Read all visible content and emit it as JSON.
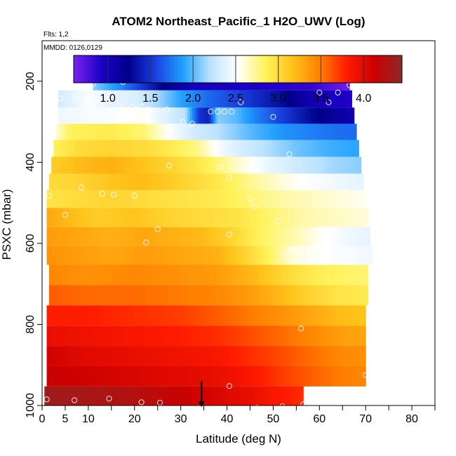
{
  "title": "ATOM2 Northeast_Pacific_1 H2O_UWV (Log)",
  "flts": "Flts: 1,2",
  "mmdd": "MMDD: 0126,0129",
  "chart_data": {
    "type": "heatmap",
    "title": "ATOM2 Northeast_Pacific_1 H2O_UWV (Log)",
    "xlabel": "Latitude (deg N)",
    "ylabel": "PSXC (mbar)",
    "xlim": [
      0,
      85
    ],
    "ylim": [
      1000,
      100
    ],
    "x_ticks": [
      0,
      5,
      10,
      20,
      30,
      40,
      50,
      60,
      70,
      80
    ],
    "x_minor_ticks": [
      15,
      25,
      35,
      45,
      55,
      65,
      75,
      85
    ],
    "y_ticks": [
      200,
      400,
      600,
      800,
      1000
    ],
    "grid": false,
    "legend": "colorbar top",
    "colorbar": {
      "min": 0.6,
      "max": 4.45,
      "ticks": [
        1.0,
        1.5,
        2.0,
        2.5,
        3.0,
        3.5,
        4.0
      ],
      "colors": [
        "#7b22ee",
        "#1c00c8",
        "#00008a",
        "#1a40e0",
        "#20a0ff",
        "#bde3ff",
        "#ffffff",
        "#fff35c",
        "#ffc21a",
        "#ff7f00",
        "#ff1a00",
        "#cc0000",
        "#8b2a2a"
      ]
    },
    "layers": [
      {
        "p": 200,
        "lat_min": 11,
        "lat_max": 66.5,
        "nodes": [
          [
            11,
            2.1
          ],
          [
            17,
            1.8
          ],
          [
            22,
            1.5
          ],
          [
            26,
            1.25
          ],
          [
            32,
            1.0
          ],
          [
            40,
            0.95
          ],
          [
            50,
            0.9
          ],
          [
            58,
            0.85
          ],
          [
            63,
            0.72
          ],
          [
            66,
            0.65
          ]
        ]
      },
      {
        "p": 245,
        "lat_min": 3.5,
        "lat_max": 67,
        "nodes": [
          [
            3.5,
            2.3
          ],
          [
            10,
            2.5
          ],
          [
            15,
            2.4
          ],
          [
            20,
            2.35
          ],
          [
            25,
            2.15
          ],
          [
            30,
            1.9
          ],
          [
            36,
            1.7
          ],
          [
            45,
            1.5
          ],
          [
            52,
            1.3
          ],
          [
            58,
            1.05
          ],
          [
            63,
            0.95
          ],
          [
            67,
            0.9
          ]
        ]
      },
      {
        "p": 285,
        "lat_min": 3.5,
        "lat_max": 67.5,
        "nodes": [
          [
            3.5,
            2.45
          ],
          [
            15,
            2.5
          ],
          [
            22,
            2.55
          ],
          [
            27,
            2.35
          ],
          [
            31,
            2.2
          ],
          [
            34,
            1.5
          ],
          [
            36,
            1.4
          ],
          [
            38,
            2.1
          ],
          [
            42,
            2.0
          ],
          [
            47,
            1.75
          ],
          [
            53,
            1.5
          ],
          [
            58,
            1.3
          ],
          [
            63,
            1.15
          ],
          [
            67,
            1.05
          ]
        ]
      },
      {
        "p": 325,
        "lat_min": 3,
        "lat_max": 68,
        "nodes": [
          [
            3,
            2.6
          ],
          [
            6,
            2.85
          ],
          [
            15,
            2.9
          ],
          [
            22,
            2.8
          ],
          [
            28,
            2.5
          ],
          [
            33,
            2.3
          ],
          [
            38,
            2.2
          ],
          [
            45,
            2.0
          ],
          [
            52,
            1.85
          ],
          [
            60,
            1.75
          ],
          [
            68,
            1.7
          ]
        ]
      },
      {
        "p": 365,
        "lat_min": 2.5,
        "lat_max": 68.5,
        "nodes": [
          [
            2.5,
            2.85
          ],
          [
            8,
            3.0
          ],
          [
            15,
            3.05
          ],
          [
            22,
            3.0
          ],
          [
            28,
            2.9
          ],
          [
            34,
            2.75
          ],
          [
            38,
            2.5
          ],
          [
            42,
            2.35
          ],
          [
            48,
            2.2
          ],
          [
            55,
            2.05
          ],
          [
            62,
            1.95
          ],
          [
            68.5,
            1.9
          ]
        ]
      },
      {
        "p": 408,
        "lat_min": 2,
        "lat_max": 69,
        "nodes": [
          [
            2,
            3.1
          ],
          [
            8,
            3.2
          ],
          [
            15,
            3.25
          ],
          [
            22,
            3.15
          ],
          [
            28,
            3.05
          ],
          [
            33,
            2.95
          ],
          [
            38,
            2.8
          ],
          [
            43,
            2.6
          ],
          [
            50,
            2.4
          ],
          [
            57,
            2.25
          ],
          [
            63,
            2.15
          ],
          [
            69,
            2.1
          ]
        ]
      },
      {
        "p": 448,
        "lat_min": 1.5,
        "lat_max": 69.5,
        "nodes": [
          [
            1.5,
            3.0
          ],
          [
            8,
            3.05
          ],
          [
            15,
            3.15
          ],
          [
            22,
            3.2
          ],
          [
            28,
            3.1
          ],
          [
            34,
            3.0
          ],
          [
            39,
            2.9
          ],
          [
            45,
            2.75
          ],
          [
            52,
            2.6
          ],
          [
            58,
            2.5
          ],
          [
            64,
            2.45
          ],
          [
            69.5,
            2.4
          ]
        ]
      },
      {
        "p": 490,
        "lat_min": 1,
        "lat_max": 70,
        "nodes": [
          [
            1,
            2.95
          ],
          [
            8,
            3.0
          ],
          [
            15,
            3.05
          ],
          [
            22,
            3.0
          ],
          [
            30,
            2.95
          ],
          [
            38,
            2.9
          ],
          [
            45,
            2.8
          ],
          [
            52,
            2.7
          ],
          [
            58,
            2.65
          ],
          [
            64,
            2.6
          ],
          [
            70,
            2.55
          ]
        ]
      },
      {
        "p": 535,
        "lat_min": 1,
        "lat_max": 70.5,
        "nodes": [
          [
            1,
            3.3
          ],
          [
            6,
            3.2
          ],
          [
            12,
            3.1
          ],
          [
            20,
            3.15
          ],
          [
            28,
            3.05
          ],
          [
            35,
            3.0
          ],
          [
            42,
            2.95
          ],
          [
            50,
            2.8
          ],
          [
            56,
            2.7
          ],
          [
            62,
            2.65
          ],
          [
            70.5,
            2.6
          ]
        ]
      },
      {
        "p": 585,
        "lat_min": 1,
        "lat_max": 71,
        "nodes": [
          [
            1,
            3.35
          ],
          [
            8,
            3.3
          ],
          [
            15,
            3.25
          ],
          [
            22,
            3.3
          ],
          [
            28,
            3.25
          ],
          [
            35,
            3.2
          ],
          [
            41,
            3.05
          ],
          [
            47,
            2.85
          ],
          [
            54,
            2.7
          ],
          [
            60,
            2.55
          ],
          [
            66,
            2.45
          ],
          [
            71,
            2.4
          ]
        ]
      },
      {
        "p": 628,
        "lat_min": 1,
        "lat_max": 71.5,
        "nodes": [
          [
            1,
            3.4
          ],
          [
            8,
            3.35
          ],
          [
            15,
            3.3
          ],
          [
            22,
            3.35
          ],
          [
            30,
            3.3
          ],
          [
            38,
            3.25
          ],
          [
            44,
            3.05
          ],
          [
            50,
            2.8
          ],
          [
            54,
            2.6
          ],
          [
            58,
            2.55
          ],
          [
            64,
            2.5
          ],
          [
            71.5,
            2.45
          ]
        ]
      },
      {
        "p": 678,
        "lat_min": 1.5,
        "lat_max": 70.5,
        "nodes": [
          [
            1.5,
            3.45
          ],
          [
            10,
            3.4
          ],
          [
            20,
            3.45
          ],
          [
            30,
            3.4
          ],
          [
            38,
            3.35
          ],
          [
            44,
            3.25
          ],
          [
            50,
            3.1
          ],
          [
            56,
            2.95
          ],
          [
            62,
            2.85
          ],
          [
            70.5,
            2.8
          ]
        ]
      },
      {
        "p": 728,
        "lat_min": 1.5,
        "lat_max": 70.5,
        "nodes": [
          [
            1.5,
            3.6
          ],
          [
            10,
            3.55
          ],
          [
            20,
            3.55
          ],
          [
            30,
            3.5
          ],
          [
            38,
            3.45
          ],
          [
            45,
            3.35
          ],
          [
            52,
            3.2
          ],
          [
            58,
            3.05
          ],
          [
            64,
            2.95
          ],
          [
            70.5,
            2.9
          ]
        ]
      },
      {
        "p": 778,
        "lat_min": 1,
        "lat_max": 70,
        "nodes": [
          [
            1,
            3.8
          ],
          [
            10,
            3.8
          ],
          [
            20,
            3.75
          ],
          [
            30,
            3.7
          ],
          [
            38,
            3.6
          ],
          [
            45,
            3.5
          ],
          [
            52,
            3.4
          ],
          [
            58,
            3.3
          ],
          [
            64,
            3.2
          ],
          [
            70,
            3.15
          ]
        ]
      },
      {
        "p": 828,
        "lat_min": 1,
        "lat_max": 70,
        "nodes": [
          [
            1,
            3.95
          ],
          [
            10,
            3.9
          ],
          [
            20,
            3.85
          ],
          [
            30,
            3.8
          ],
          [
            38,
            3.75
          ],
          [
            45,
            3.65
          ],
          [
            52,
            3.55
          ],
          [
            58,
            3.45
          ],
          [
            64,
            3.35
          ],
          [
            70,
            3.3
          ]
        ]
      },
      {
        "p": 878,
        "lat_min": 1,
        "lat_max": 70,
        "nodes": [
          [
            1,
            4.1
          ],
          [
            10,
            4.0
          ],
          [
            20,
            3.95
          ],
          [
            30,
            3.9
          ],
          [
            38,
            3.85
          ],
          [
            45,
            3.75
          ],
          [
            52,
            3.65
          ],
          [
            58,
            3.55
          ],
          [
            64,
            3.45
          ],
          [
            70,
            3.4
          ]
        ]
      },
      {
        "p": 928,
        "lat_min": 1,
        "lat_max": 70,
        "nodes": [
          [
            1,
            4.15
          ],
          [
            10,
            4.1
          ],
          [
            20,
            4.05
          ],
          [
            30,
            4.0
          ],
          [
            38,
            3.95
          ],
          [
            45,
            3.85
          ],
          [
            52,
            3.7
          ],
          [
            58,
            3.6
          ],
          [
            64,
            3.5
          ],
          [
            70,
            3.45
          ]
        ]
      },
      {
        "p": 978,
        "lat_min": 0.5,
        "lat_max": 56.5,
        "nodes": [
          [
            0.5,
            4.35
          ],
          [
            10,
            4.3
          ],
          [
            20,
            4.25
          ],
          [
            30,
            4.15
          ],
          [
            38,
            4.05
          ],
          [
            45,
            3.95
          ],
          [
            50,
            3.85
          ],
          [
            56.5,
            3.75
          ]
        ]
      }
    ],
    "points": [
      {
        "lat": 11,
        "p": 208
      },
      {
        "lat": 17.5,
        "p": 202
      },
      {
        "lat": 30,
        "p": 185
      },
      {
        "lat": 66.5,
        "p": 210
      },
      {
        "lat": 4,
        "p": 243
      },
      {
        "lat": 7,
        "p": 243
      },
      {
        "lat": 10,
        "p": 243
      },
      {
        "lat": 12.5,
        "p": 243
      },
      {
        "lat": 15,
        "p": 243
      },
      {
        "lat": 60,
        "p": 228
      },
      {
        "lat": 62,
        "p": 252
      },
      {
        "lat": 64,
        "p": 228
      },
      {
        "lat": 43,
        "p": 252
      },
      {
        "lat": 17.5,
        "p": 263
      },
      {
        "lat": 19.5,
        "p": 263
      },
      {
        "lat": 21.5,
        "p": 263
      },
      {
        "lat": 23,
        "p": 270
      },
      {
        "lat": 27,
        "p": 270
      },
      {
        "lat": 20.5,
        "p": 270
      },
      {
        "lat": 36.5,
        "p": 275
      },
      {
        "lat": 38,
        "p": 275
      },
      {
        "lat": 39.5,
        "p": 275
      },
      {
        "lat": 41,
        "p": 275
      },
      {
        "lat": 50,
        "p": 288
      },
      {
        "lat": 23,
        "p": 300
      },
      {
        "lat": 30.5,
        "p": 300
      },
      {
        "lat": 32.5,
        "p": 305
      },
      {
        "lat": 35,
        "p": 358
      },
      {
        "lat": 53.5,
        "p": 380
      },
      {
        "lat": 27.5,
        "p": 408
      },
      {
        "lat": 38.5,
        "p": 412
      },
      {
        "lat": 40.5,
        "p": 438
      },
      {
        "lat": 58,
        "p": 448
      },
      {
        "lat": 1.5,
        "p": 482
      },
      {
        "lat": 8.5,
        "p": 462
      },
      {
        "lat": 13,
        "p": 477
      },
      {
        "lat": 15.5,
        "p": 480
      },
      {
        "lat": 20,
        "p": 482
      },
      {
        "lat": 45,
        "p": 490
      },
      {
        "lat": 46,
        "p": 510
      },
      {
        "lat": 5,
        "p": 530
      },
      {
        "lat": 25,
        "p": 565
      },
      {
        "lat": 51,
        "p": 545
      },
      {
        "lat": 22.5,
        "p": 598
      },
      {
        "lat": 40.5,
        "p": 578
      },
      {
        "lat": 71.5,
        "p": 572
      },
      {
        "lat": 52.5,
        "p": 630
      },
      {
        "lat": 54,
        "p": 615
      },
      {
        "lat": 56,
        "p": 810
      },
      {
        "lat": 70,
        "p": 925
      },
      {
        "lat": 40.5,
        "p": 952
      },
      {
        "lat": 1,
        "p": 985
      },
      {
        "lat": 7,
        "p": 987
      },
      {
        "lat": 14.5,
        "p": 983
      },
      {
        "lat": 21.5,
        "p": 992
      },
      {
        "lat": 25.5,
        "p": 993
      },
      {
        "lat": 46.5,
        "p": 1005
      },
      {
        "lat": 52,
        "p": 1002
      },
      {
        "lat": 56.5,
        "p": 997
      }
    ],
    "marker": {
      "lat": 34.5,
      "p": 995
    }
  }
}
